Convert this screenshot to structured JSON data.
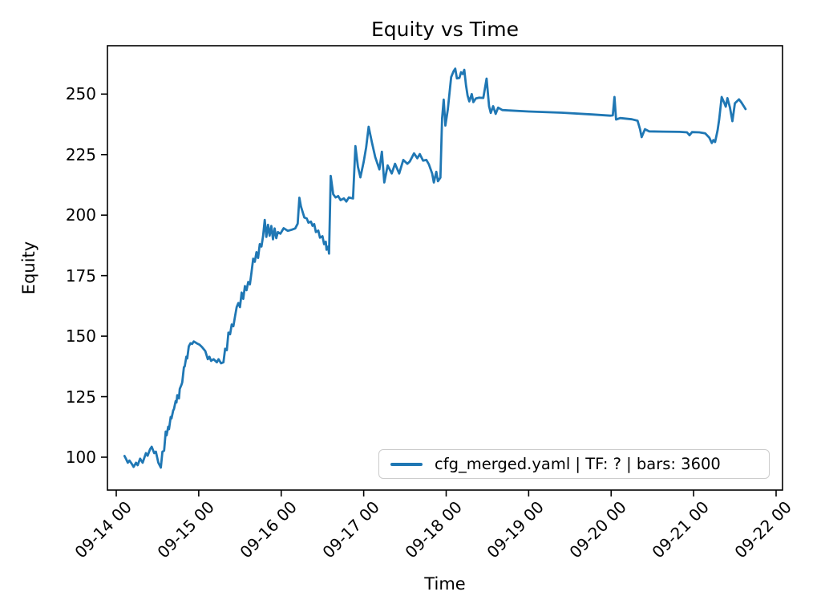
{
  "title": "Equity vs Time",
  "axes": {
    "xlabel": "Time",
    "ylabel": "Equity"
  },
  "legend": {
    "label": "cfg_merged.yaml | TF: ? | bars: 3600",
    "position": "lower right",
    "border_color": "#cccccc"
  },
  "colors": {
    "line": "#1f77b4",
    "axes_stroke": "#000000",
    "background": "#ffffff"
  },
  "chart_data": {
    "type": "line",
    "title": "Equity vs Time",
    "xlabel": "Time",
    "ylabel": "Equity",
    "grid": false,
    "legend_position": "lower right",
    "line_color": "#1f77b4",
    "x_tick_labels": [
      "09-14 00",
      "09-15 00",
      "09-16 00",
      "09-17 00",
      "09-18 00",
      "09-19 00",
      "09-20 00",
      "09-21 00",
      "09-22 00"
    ],
    "y_ticks": [
      100,
      125,
      150,
      175,
      200,
      225,
      250
    ],
    "ylim": [
      86,
      270
    ],
    "xlim_days_after_09_14": [
      -0.11,
      8.08
    ],
    "series": [
      {
        "name": "cfg_merged.yaml | TF: ? | bars: 3600",
        "x_unit": "days after 09-14 00:00",
        "points": [
          [
            0.1,
            100.5
          ],
          [
            0.12,
            99.2
          ],
          [
            0.14,
            97.7
          ],
          [
            0.16,
            98.6
          ],
          [
            0.19,
            97.2
          ],
          [
            0.21,
            96.0
          ],
          [
            0.24,
            97.7
          ],
          [
            0.26,
            96.7
          ],
          [
            0.29,
            99.4
          ],
          [
            0.32,
            97.7
          ],
          [
            0.36,
            101.7
          ],
          [
            0.38,
            100.6
          ],
          [
            0.41,
            103.3
          ],
          [
            0.43,
            104.3
          ],
          [
            0.46,
            101.7
          ],
          [
            0.48,
            102.3
          ],
          [
            0.51,
            97.7
          ],
          [
            0.54,
            95.7
          ],
          [
            0.56,
            102.3
          ],
          [
            0.58,
            102.7
          ],
          [
            0.6,
            110.6
          ],
          [
            0.61,
            109.0
          ],
          [
            0.63,
            112.6
          ],
          [
            0.64,
            111.6
          ],
          [
            0.66,
            116.6
          ],
          [
            0.67,
            116.0
          ],
          [
            0.69,
            119.3
          ],
          [
            0.7,
            119.9
          ],
          [
            0.72,
            123.2
          ],
          [
            0.73,
            122.6
          ],
          [
            0.74,
            125.6
          ],
          [
            0.76,
            124.3
          ],
          [
            0.77,
            128.2
          ],
          [
            0.79,
            129.9
          ],
          [
            0.8,
            130.9
          ],
          [
            0.82,
            137.2
          ],
          [
            0.83,
            137.5
          ],
          [
            0.85,
            141.5
          ],
          [
            0.86,
            140.8
          ],
          [
            0.88,
            145.8
          ],
          [
            0.9,
            147.1
          ],
          [
            0.92,
            146.8
          ],
          [
            0.94,
            147.8
          ],
          [
            0.98,
            147.0
          ],
          [
            1.01,
            146.5
          ],
          [
            1.04,
            145.5
          ],
          [
            1.08,
            143.8
          ],
          [
            1.11,
            140.5
          ],
          [
            1.13,
            141.5
          ],
          [
            1.15,
            139.8
          ],
          [
            1.18,
            140.5
          ],
          [
            1.22,
            139.2
          ],
          [
            1.24,
            140.5
          ],
          [
            1.27,
            138.8
          ],
          [
            1.3,
            139.2
          ],
          [
            1.32,
            144.8
          ],
          [
            1.34,
            144.2
          ],
          [
            1.36,
            151.5
          ],
          [
            1.38,
            150.8
          ],
          [
            1.4,
            154.8
          ],
          [
            1.42,
            154.1
          ],
          [
            1.44,
            158.1
          ],
          [
            1.46,
            162.0
          ],
          [
            1.48,
            163.7
          ],
          [
            1.5,
            162.0
          ],
          [
            1.52,
            168.0
          ],
          [
            1.54,
            165.4
          ],
          [
            1.56,
            170.7
          ],
          [
            1.58,
            169.0
          ],
          [
            1.6,
            172.4
          ],
          [
            1.62,
            171.4
          ],
          [
            1.64,
            176.4
          ],
          [
            1.66,
            182.0
          ],
          [
            1.68,
            180.7
          ],
          [
            1.7,
            184.7
          ],
          [
            1.72,
            182.3
          ],
          [
            1.74,
            188.0
          ],
          [
            1.76,
            187.0
          ],
          [
            1.78,
            191.3
          ],
          [
            1.8,
            198.0
          ],
          [
            1.82,
            191.0
          ],
          [
            1.84,
            196.0
          ],
          [
            1.86,
            191.5
          ],
          [
            1.88,
            195.5
          ],
          [
            1.9,
            190.0
          ],
          [
            1.92,
            194.5
          ],
          [
            1.94,
            190.5
          ],
          [
            1.96,
            193.0
          ],
          [
            1.99,
            192.3
          ],
          [
            2.03,
            194.6
          ],
          [
            2.08,
            193.5
          ],
          [
            2.13,
            194.0
          ],
          [
            2.17,
            194.5
          ],
          [
            2.2,
            196.5
          ],
          [
            2.22,
            207.2
          ],
          [
            2.24,
            203.5
          ],
          [
            2.26,
            201.3
          ],
          [
            2.28,
            199.0
          ],
          [
            2.31,
            198.6
          ],
          [
            2.33,
            196.9
          ],
          [
            2.36,
            197.3
          ],
          [
            2.38,
            195.6
          ],
          [
            2.4,
            196.3
          ],
          [
            2.42,
            193.0
          ],
          [
            2.45,
            193.6
          ],
          [
            2.47,
            190.7
          ],
          [
            2.5,
            191.3
          ],
          [
            2.52,
            188.0
          ],
          [
            2.54,
            189.0
          ],
          [
            2.55,
            185.7
          ],
          [
            2.57,
            187.0
          ],
          [
            2.58,
            184.1
          ],
          [
            2.6,
            216.2
          ],
          [
            2.63,
            208.6
          ],
          [
            2.66,
            207.3
          ],
          [
            2.69,
            207.9
          ],
          [
            2.72,
            206.2
          ],
          [
            2.76,
            206.9
          ],
          [
            2.79,
            205.6
          ],
          [
            2.82,
            207.3
          ],
          [
            2.87,
            206.9
          ],
          [
            2.9,
            228.5
          ],
          [
            2.93,
            220.0
          ],
          [
            2.96,
            215.6
          ],
          [
            3.0,
            222.0
          ],
          [
            3.03,
            228.0
          ],
          [
            3.06,
            236.5
          ],
          [
            3.1,
            230.0
          ],
          [
            3.14,
            224.0
          ],
          [
            3.19,
            218.9
          ],
          [
            3.22,
            226.2
          ],
          [
            3.25,
            213.5
          ],
          [
            3.29,
            220.5
          ],
          [
            3.34,
            217.2
          ],
          [
            3.38,
            221.2
          ],
          [
            3.43,
            217.2
          ],
          [
            3.48,
            222.8
          ],
          [
            3.53,
            221.2
          ],
          [
            3.56,
            222.2
          ],
          [
            3.61,
            225.5
          ],
          [
            3.65,
            223.5
          ],
          [
            3.68,
            225.2
          ],
          [
            3.72,
            222.5
          ],
          [
            3.76,
            222.8
          ],
          [
            3.79,
            221.0
          ],
          [
            3.83,
            217.2
          ],
          [
            3.85,
            213.5
          ],
          [
            3.88,
            217.9
          ],
          [
            3.9,
            214.0
          ],
          [
            3.93,
            215.5
          ],
          [
            3.95,
            240.0
          ],
          [
            3.97,
            247.7
          ],
          [
            3.99,
            237.0
          ],
          [
            4.02,
            243.8
          ],
          [
            4.06,
            257.0
          ],
          [
            4.09,
            259.5
          ],
          [
            4.11,
            260.5
          ],
          [
            4.13,
            256.5
          ],
          [
            4.16,
            256.7
          ],
          [
            4.18,
            259.0
          ],
          [
            4.2,
            258.3
          ],
          [
            4.22,
            260.0
          ],
          [
            4.24,
            253.7
          ],
          [
            4.26,
            249.4
          ],
          [
            4.28,
            247.0
          ],
          [
            4.31,
            250.0
          ],
          [
            4.33,
            246.7
          ],
          [
            4.36,
            248.2
          ],
          [
            4.4,
            248.5
          ],
          [
            4.45,
            248.4
          ],
          [
            4.49,
            256.4
          ],
          [
            4.52,
            245.0
          ],
          [
            4.54,
            242.2
          ],
          [
            4.57,
            245.0
          ],
          [
            4.6,
            241.8
          ],
          [
            4.63,
            244.4
          ],
          [
            4.68,
            243.4
          ],
          [
            5.0,
            242.8
          ],
          [
            5.4,
            242.3
          ],
          [
            5.77,
            241.6
          ],
          [
            5.99,
            241.1
          ],
          [
            6.02,
            241.2
          ],
          [
            6.04,
            248.8
          ],
          [
            6.06,
            239.5
          ],
          [
            6.11,
            240.1
          ],
          [
            6.25,
            239.6
          ],
          [
            6.32,
            239.0
          ],
          [
            6.35,
            235.5
          ],
          [
            6.37,
            232.2
          ],
          [
            6.41,
            235.5
          ],
          [
            6.46,
            234.6
          ],
          [
            6.63,
            234.5
          ],
          [
            6.83,
            234.4
          ],
          [
            6.92,
            234.2
          ],
          [
            6.95,
            233.0
          ],
          [
            6.98,
            234.3
          ],
          [
            7.07,
            234.2
          ],
          [
            7.14,
            233.8
          ],
          [
            7.19,
            232.0
          ],
          [
            7.22,
            229.8
          ],
          [
            7.24,
            231.0
          ],
          [
            7.26,
            230.2
          ],
          [
            7.29,
            235.0
          ],
          [
            7.31,
            239.5
          ],
          [
            7.34,
            248.8
          ],
          [
            7.37,
            246.5
          ],
          [
            7.39,
            244.8
          ],
          [
            7.41,
            248.3
          ],
          [
            7.44,
            244.5
          ],
          [
            7.47,
            238.8
          ],
          [
            7.5,
            246.2
          ],
          [
            7.55,
            247.8
          ],
          [
            7.58,
            246.5
          ],
          [
            7.63,
            243.8
          ]
        ]
      }
    ]
  }
}
